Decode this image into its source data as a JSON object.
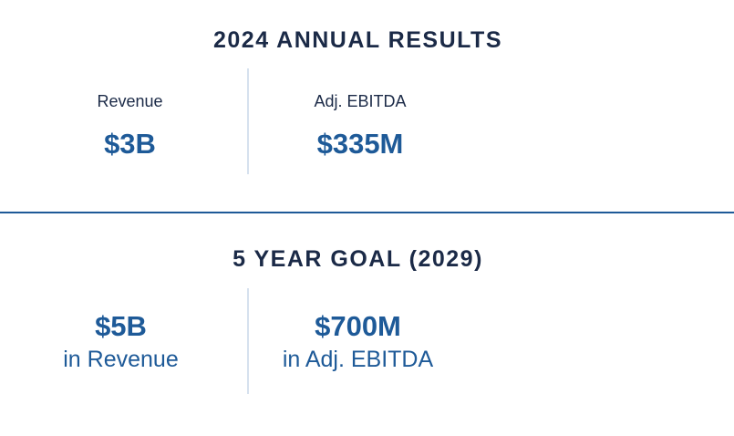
{
  "annual": {
    "title": "2024 ANNUAL RESULTS",
    "revenue": {
      "label": "Revenue",
      "value": "$3B"
    },
    "ebitda": {
      "label": "Adj. EBITDA",
      "value": "$335M"
    }
  },
  "goal": {
    "title": "5 YEAR GOAL (2029)",
    "revenue": {
      "value": "$5B",
      "caption": "in Revenue"
    },
    "ebitda": {
      "value": "$700M",
      "caption": "in Adj. EBITDA"
    }
  },
  "colors": {
    "heading": "#1b2a47",
    "accent": "#1e5a98",
    "divider_light": "#d6e1ee"
  }
}
